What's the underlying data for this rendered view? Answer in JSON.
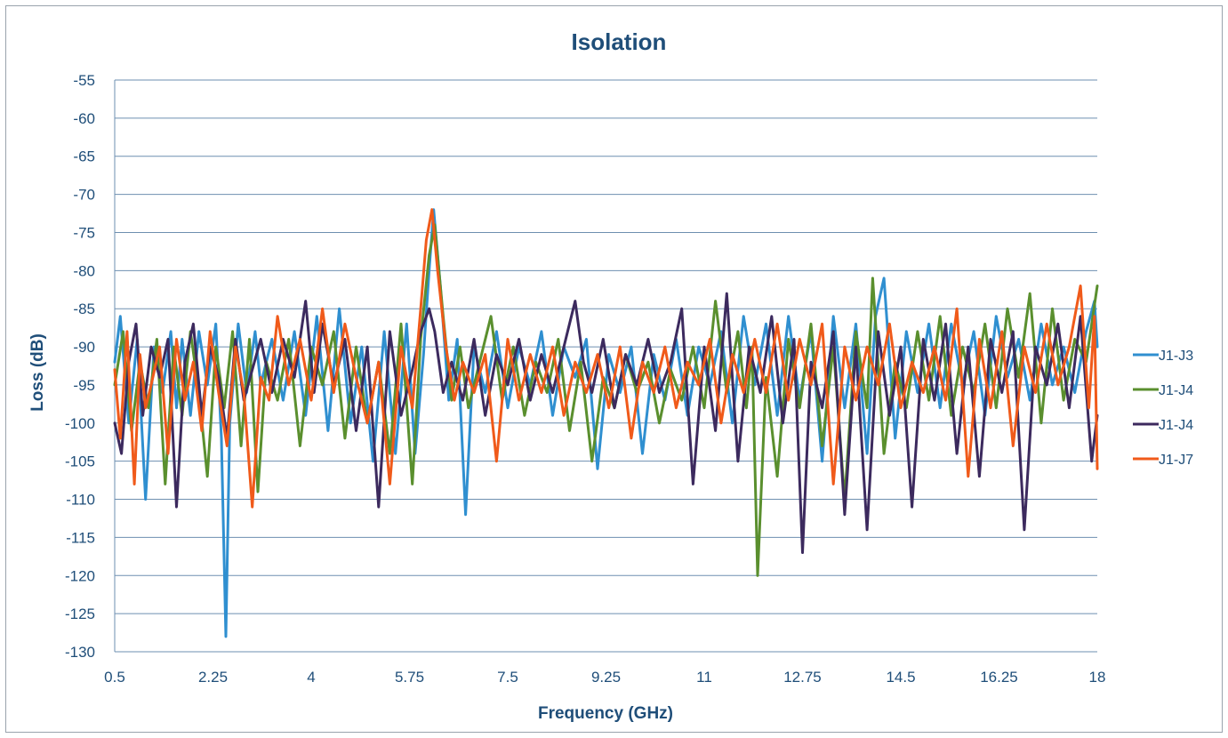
{
  "chart_data": {
    "type": "line",
    "title": "Isolation",
    "xlabel": "Frequency (GHz)",
    "ylabel": "Loss (dB)",
    "xlim": [
      0.5,
      18
    ],
    "ylim": [
      -130,
      -55
    ],
    "x_ticks": [
      "0.5",
      "2.25",
      "4",
      "5.75",
      "7.5",
      "9.25",
      "11",
      "12.75",
      "14.5",
      "16.25",
      "18"
    ],
    "y_ticks": [
      "-55",
      "-60",
      "-65",
      "-70",
      "-75",
      "-80",
      "-85",
      "-90",
      "-95",
      "-100",
      "-105",
      "-110",
      "-115",
      "-120",
      "-125",
      "-130"
    ],
    "grid": "horizontal",
    "legend_position": "right",
    "series": [
      {
        "name": "J1-J3",
        "color": "#2f8fd0",
        "x": [
          0.5,
          0.6,
          0.75,
          0.9,
          1.05,
          1.2,
          1.35,
          1.5,
          1.6,
          1.7,
          1.85,
          2.0,
          2.15,
          2.3,
          2.4,
          2.48,
          2.55,
          2.7,
          2.85,
          3.0,
          3.1,
          3.3,
          3.5,
          3.7,
          3.9,
          4.1,
          4.3,
          4.5,
          4.7,
          4.9,
          5.1,
          5.3,
          5.5,
          5.7,
          5.85,
          6.0,
          6.1,
          6.18,
          6.3,
          6.45,
          6.6,
          6.75,
          6.9,
          7.1,
          7.3,
          7.5,
          7.7,
          7.9,
          8.1,
          8.3,
          8.5,
          8.7,
          8.9,
          9.1,
          9.3,
          9.5,
          9.7,
          9.9,
          10.1,
          10.3,
          10.5,
          10.7,
          10.9,
          11.1,
          11.3,
          11.5,
          11.7,
          11.9,
          12.1,
          12.3,
          12.5,
          12.7,
          12.9,
          13.1,
          13.3,
          13.5,
          13.7,
          13.9,
          14.05,
          14.2,
          14.4,
          14.6,
          14.8,
          15.0,
          15.2,
          15.4,
          15.6,
          15.8,
          16.0,
          16.2,
          16.4,
          16.6,
          16.8,
          17.0,
          17.2,
          17.4,
          17.6,
          17.8,
          17.95,
          18.0
        ],
        "y": [
          -92,
          -86,
          -100,
          -89,
          -110,
          -90,
          -96,
          -88,
          -98,
          -89,
          -99,
          -88,
          -95,
          -87,
          -102,
          -128,
          -100,
          -87,
          -96,
          -88,
          -95,
          -89,
          -97,
          -88,
          -99,
          -86,
          -101,
          -85,
          -100,
          -90,
          -105,
          -88,
          -104,
          -87,
          -104,
          -91,
          -80,
          -72,
          -82,
          -97,
          -89,
          -112,
          -90,
          -96,
          -88,
          -98,
          -90,
          -95,
          -88,
          -99,
          -90,
          -94,
          -89,
          -106,
          -91,
          -96,
          -90,
          -104,
          -91,
          -97,
          -89,
          -99,
          -90,
          -95,
          -88,
          -100,
          -86,
          -95,
          -87,
          -99,
          -86,
          -97,
          -88,
          -105,
          -86,
          -98,
          -87,
          -104,
          -86,
          -81,
          -102,
          -88,
          -96,
          -87,
          -98,
          -87,
          -95,
          -88,
          -99,
          -86,
          -94,
          -89,
          -97,
          -87,
          -95,
          -90,
          -96,
          -88,
          -84,
          -90
        ]
      },
      {
        "name": "J1-J4",
        "color": "#5a8f2e",
        "x": [
          0.5,
          0.65,
          0.8,
          0.95,
          1.1,
          1.25,
          1.4,
          1.55,
          1.7,
          1.85,
          2.0,
          2.15,
          2.3,
          2.45,
          2.6,
          2.75,
          2.9,
          3.05,
          3.2,
          3.4,
          3.6,
          3.8,
          4.0,
          4.2,
          4.4,
          4.6,
          4.8,
          5.0,
          5.2,
          5.4,
          5.6,
          5.8,
          5.95,
          6.1,
          6.2,
          6.35,
          6.5,
          6.65,
          6.8,
          7.0,
          7.2,
          7.4,
          7.6,
          7.8,
          8.0,
          8.2,
          8.4,
          8.6,
          8.8,
          9.0,
          9.2,
          9.4,
          9.6,
          9.8,
          10.0,
          10.2,
          10.4,
          10.6,
          10.8,
          11.0,
          11.2,
          11.4,
          11.6,
          11.75,
          11.85,
          11.95,
          12.1,
          12.3,
          12.5,
          12.7,
          12.9,
          13.1,
          13.3,
          13.5,
          13.7,
          13.9,
          14.0,
          14.2,
          14.4,
          14.6,
          14.8,
          15.0,
          15.2,
          15.4,
          15.6,
          15.8,
          16.0,
          16.2,
          16.4,
          16.6,
          16.8,
          17.0,
          17.2,
          17.4,
          17.6,
          17.8,
          18.0
        ],
        "y": [
          -95,
          -88,
          -101,
          -92,
          -98,
          -89,
          -108,
          -90,
          -99,
          -88,
          -96,
          -107,
          -90,
          -98,
          -88,
          -103,
          -89,
          -109,
          -92,
          -97,
          -89,
          -103,
          -90,
          -95,
          -88,
          -102,
          -90,
          -100,
          -92,
          -104,
          -87,
          -108,
          -89,
          -78,
          -74,
          -86,
          -97,
          -90,
          -98,
          -92,
          -86,
          -97,
          -90,
          -99,
          -92,
          -96,
          -89,
          -101,
          -92,
          -105,
          -94,
          -98,
          -91,
          -96,
          -92,
          -100,
          -93,
          -97,
          -90,
          -98,
          -84,
          -96,
          -88,
          -98,
          -90,
          -120,
          -94,
          -107,
          -89,
          -98,
          -87,
          -103,
          -90,
          -110,
          -88,
          -98,
          -81,
          -104,
          -92,
          -98,
          -88,
          -97,
          -86,
          -99,
          -90,
          -96,
          -87,
          -98,
          -85,
          -94,
          -83,
          -100,
          -85,
          -97,
          -89,
          -92,
          -82
        ]
      },
      {
        "name": "J1-J4",
        "color": "#3c2a5e",
        "x": [
          0.5,
          0.62,
          0.75,
          0.88,
          1.0,
          1.15,
          1.3,
          1.45,
          1.6,
          1.75,
          1.9,
          2.05,
          2.2,
          2.35,
          2.5,
          2.65,
          2.8,
          2.95,
          3.1,
          3.3,
          3.5,
          3.7,
          3.9,
          4.05,
          4.2,
          4.4,
          4.6,
          4.8,
          5.0,
          5.2,
          5.4,
          5.6,
          5.8,
          5.95,
          6.1,
          6.2,
          6.35,
          6.5,
          6.7,
          6.9,
          7.1,
          7.3,
          7.5,
          7.7,
          7.9,
          8.1,
          8.3,
          8.5,
          8.7,
          8.85,
          9.0,
          9.2,
          9.4,
          9.6,
          9.8,
          10.0,
          10.2,
          10.4,
          10.6,
          10.8,
          11.0,
          11.2,
          11.4,
          11.6,
          11.8,
          12.0,
          12.2,
          12.4,
          12.6,
          12.75,
          12.9,
          13.1,
          13.3,
          13.5,
          13.7,
          13.9,
          14.1,
          14.3,
          14.5,
          14.7,
          14.9,
          15.1,
          15.3,
          15.5,
          15.7,
          15.9,
          16.1,
          16.3,
          16.5,
          16.7,
          16.9,
          17.1,
          17.3,
          17.5,
          17.7,
          17.9,
          18.0
        ],
        "y": [
          -100,
          -104,
          -92,
          -87,
          -99,
          -90,
          -94,
          -89,
          -111,
          -92,
          -87,
          -99,
          -90,
          -94,
          -102,
          -89,
          -97,
          -93,
          -89,
          -96,
          -89,
          -94,
          -84,
          -96,
          -87,
          -95,
          -89,
          -101,
          -90,
          -111,
          -88,
          -99,
          -93,
          -88,
          -85,
          -88,
          -96,
          -92,
          -97,
          -89,
          -99,
          -91,
          -95,
          -89,
          -97,
          -91,
          -96,
          -90,
          -84,
          -92,
          -96,
          -89,
          -98,
          -91,
          -95,
          -89,
          -96,
          -92,
          -85,
          -108,
          -90,
          -101,
          -83,
          -105,
          -90,
          -96,
          -86,
          -100,
          -89,
          -117,
          -92,
          -98,
          -88,
          -112,
          -90,
          -114,
          -88,
          -99,
          -90,
          -111,
          -89,
          -97,
          -87,
          -104,
          -90,
          -107,
          -89,
          -96,
          -88,
          -114,
          -90,
          -95,
          -87,
          -98,
          -86,
          -105,
          -99
        ]
      },
      {
        "name": "J1-J7",
        "color": "#f05a1a",
        "x": [
          0.5,
          0.6,
          0.72,
          0.85,
          0.95,
          1.05,
          1.15,
          1.3,
          1.45,
          1.6,
          1.75,
          1.9,
          2.05,
          2.2,
          2.35,
          2.5,
          2.65,
          2.8,
          2.95,
          3.1,
          3.25,
          3.4,
          3.6,
          3.8,
          4.0,
          4.2,
          4.4,
          4.6,
          4.8,
          5.0,
          5.2,
          5.4,
          5.6,
          5.8,
          5.95,
          6.05,
          6.15,
          6.25,
          6.4,
          6.55,
          6.7,
          6.9,
          7.1,
          7.3,
          7.5,
          7.7,
          7.9,
          8.1,
          8.3,
          8.5,
          8.7,
          8.9,
          9.1,
          9.3,
          9.5,
          9.7,
          9.9,
          10.1,
          10.3,
          10.5,
          10.7,
          10.9,
          11.1,
          11.3,
          11.5,
          11.7,
          11.9,
          12.1,
          12.3,
          12.5,
          12.7,
          12.9,
          13.1,
          13.3,
          13.5,
          13.7,
          13.9,
          14.1,
          14.3,
          14.5,
          14.7,
          14.9,
          15.1,
          15.3,
          15.5,
          15.7,
          15.9,
          16.1,
          16.3,
          16.5,
          16.7,
          16.9,
          17.1,
          17.3,
          17.5,
          17.7,
          17.85,
          17.95,
          18.0
        ],
        "y": [
          -93,
          -102,
          -88,
          -108,
          -91,
          -98,
          -95,
          -90,
          -104,
          -89,
          -97,
          -92,
          -101,
          -88,
          -96,
          -103,
          -90,
          -96,
          -111,
          -94,
          -97,
          -86,
          -95,
          -89,
          -97,
          -85,
          -96,
          -87,
          -94,
          -100,
          -92,
          -108,
          -90,
          -98,
          -85,
          -76,
          -72,
          -80,
          -90,
          -97,
          -92,
          -96,
          -91,
          -105,
          -89,
          -97,
          -91,
          -96,
          -90,
          -99,
          -92,
          -96,
          -91,
          -98,
          -90,
          -102,
          -92,
          -96,
          -90,
          -98,
          -92,
          -95,
          -89,
          -100,
          -91,
          -96,
          -89,
          -96,
          -87,
          -97,
          -89,
          -95,
          -87,
          -108,
          -90,
          -97,
          -90,
          -95,
          -87,
          -98,
          -92,
          -96,
          -90,
          -97,
          -85,
          -107,
          -89,
          -98,
          -88,
          -103,
          -90,
          -96,
          -87,
          -95,
          -90,
          -82,
          -98,
          -86,
          -106
        ]
      }
    ]
  }
}
